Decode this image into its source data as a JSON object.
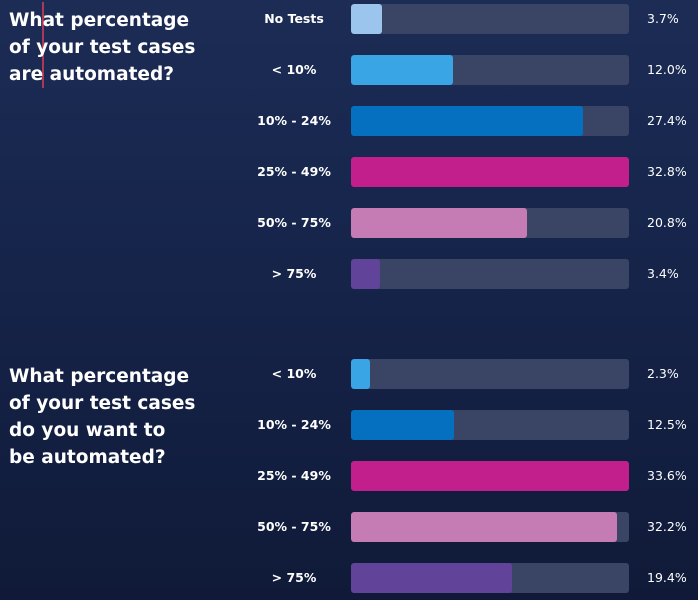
{
  "chart_data": [
    {
      "type": "bar",
      "orientation": "horizontal",
      "title_lines": [
        "What percentage",
        "of your test cases",
        "are automated?"
      ],
      "categories": [
        "No Tests",
        "< 10%",
        "10% - 24%",
        "25% - 49%",
        "50% - 75%",
        "> 75%"
      ],
      "values": [
        3.7,
        12.0,
        27.4,
        32.8,
        20.8,
        3.4
      ],
      "value_labels": [
        "3.7%",
        "12.0%",
        "27.4%",
        "32.8%",
        "20.8%",
        "3.4%"
      ],
      "colors": [
        "#9cc5ee",
        "#3aa5e4",
        "#0570c0",
        "#c21e8c",
        "#c57cb5",
        "#61449a"
      ],
      "xlim": [
        0,
        32.8
      ],
      "grid": false
    },
    {
      "type": "bar",
      "orientation": "horizontal",
      "title_lines": [
        "What percentage",
        "of your test cases",
        "do you want to",
        "be automated?"
      ],
      "categories": [
        "< 10%",
        "10% - 24%",
        "25% - 49%",
        "50% - 75%",
        "> 75%"
      ],
      "values": [
        2.3,
        12.5,
        33.6,
        32.2,
        19.4
      ],
      "value_labels": [
        "2.3%",
        "12.5%",
        "33.6%",
        "32.2%",
        "19.4%"
      ],
      "colors": [
        "#3aa5e4",
        "#0570c0",
        "#c21e8c",
        "#c57cb5",
        "#61449a"
      ],
      "xlim": [
        0,
        33.6
      ],
      "grid": false
    }
  ],
  "colors": {
    "background": "#16244a",
    "track": "#3a4566",
    "text": "#ffffff"
  }
}
